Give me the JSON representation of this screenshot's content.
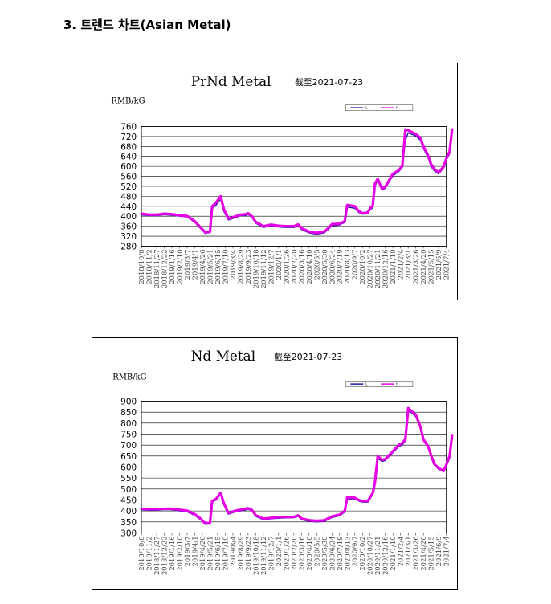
{
  "heading": "3. 트렌드 차트(Asian Metal)",
  "x_dates": [
    "2018/10/8",
    "2018/11/2",
    "2018/11/27",
    "2018/12/22",
    "2019/1/16",
    "2019/2/10",
    "2019/3/7",
    "2019/4/1",
    "2019/4/26",
    "2019/5/21",
    "2019/6/15",
    "2019/7/10",
    "2019/8/4",
    "2019/8/29",
    "2019/9/23",
    "2019/10/18",
    "2019/11/12",
    "2019/12/7",
    "2020/1/1",
    "2020/1/26",
    "2020/2/20",
    "2020/3/16",
    "2020/4/10",
    "2020/5/5",
    "2020/5/30",
    "2020/6/24",
    "2020/7/19",
    "2020/8/13",
    "2020/9/7",
    "2020/10/2",
    "2020/10/27",
    "2020/11/21",
    "2020/12/16",
    "2021/1/10",
    "2021/2/4",
    "2021/3/1",
    "2021/3/26",
    "2021/4/20",
    "2021/5/15",
    "2021/6/9",
    "2021/7/4"
  ],
  "chart_data": [
    {
      "type": "line",
      "title": "PrNd Metal",
      "date_note": "截至2021-07-23",
      "ylabel": "RMB/kG",
      "ylim": [
        280,
        760
      ],
      "yticks": [
        760,
        720,
        680,
        640,
        600,
        560,
        520,
        480,
        440,
        400,
        360,
        320,
        280
      ],
      "legend": [
        "L",
        "H"
      ],
      "colors": {
        "L": "#1a1aa8",
        "H": "#e600e6"
      },
      "series": [
        {
          "name": "L",
          "x": [
            "2018/10/8",
            "2018/11/2",
            "2018/11/27",
            "2018/12/22",
            "2019/1/16",
            "2019/2/10",
            "2019/3/7",
            "2019/4/1",
            "2019/4/20",
            "2019/5/6",
            "2019/5/10",
            "2019/5/21",
            "2019/5/28",
            "2019/6/10",
            "2019/6/25",
            "2019/7/5",
            "2019/7/20",
            "2019/8/10",
            "2019/8/29",
            "2019/9/15",
            "2019/9/23",
            "2019/10/5",
            "2019/10/18",
            "2019/11/12",
            "2019/12/7",
            "2020/1/1",
            "2020/1/26",
            "2020/2/20",
            "2020/3/5",
            "2020/3/16",
            "2020/4/10",
            "2020/5/5",
            "2020/5/30",
            "2020/6/10",
            "2020/6/24",
            "2020/7/19",
            "2020/8/5",
            "2020/8/13",
            "2020/9/7",
            "2020/9/20",
            "2020/10/2",
            "2020/10/20",
            "2020/10/27",
            "2020/11/5",
            "2020/11/12",
            "2020/11/21",
            "2020/12/5",
            "2020/12/16",
            "2021/1/10",
            "2021/1/30",
            "2021/2/10",
            "2021/2/20",
            "2021/3/1",
            "2021/3/26",
            "2021/4/10",
            "2021/4/20",
            "2021/5/5",
            "2021/5/15",
            "2021/5/25",
            "2021/6/9",
            "2021/6/25",
            "2021/7/4",
            "2021/7/15",
            "2021/7/23"
          ],
          "y": [
            405,
            402,
            402,
            406,
            404,
            400,
            397,
            375,
            350,
            330,
            333,
            334,
            430,
            445,
            470,
            420,
            385,
            393,
            402,
            403,
            407,
            395,
            372,
            355,
            362,
            357,
            355,
            355,
            362,
            347,
            333,
            328,
            333,
            345,
            362,
            365,
            375,
            437,
            432,
            415,
            408,
            410,
            425,
            435,
            520,
            545,
            505,
            512,
            562,
            580,
            595,
            705,
            735,
            722,
            705,
            672,
            636,
            600,
            583,
            570,
            592,
            624,
            650,
            740
          ]
        },
        {
          "name": "H",
          "x": [
            "2018/10/8",
            "2018/11/2",
            "2018/11/27",
            "2018/12/22",
            "2019/1/16",
            "2019/2/10",
            "2019/3/7",
            "2019/4/1",
            "2019/4/20",
            "2019/5/6",
            "2019/5/10",
            "2019/5/21",
            "2019/5/28",
            "2019/6/10",
            "2019/6/25",
            "2019/7/5",
            "2019/7/20",
            "2019/8/10",
            "2019/8/29",
            "2019/9/15",
            "2019/9/23",
            "2019/10/5",
            "2019/10/18",
            "2019/11/12",
            "2019/12/7",
            "2020/1/1",
            "2020/1/26",
            "2020/2/20",
            "2020/3/5",
            "2020/3/16",
            "2020/4/10",
            "2020/5/5",
            "2020/5/30",
            "2020/6/10",
            "2020/6/24",
            "2020/7/19",
            "2020/8/5",
            "2020/8/13",
            "2020/9/7",
            "2020/9/20",
            "2020/10/2",
            "2020/10/20",
            "2020/10/27",
            "2020/11/5",
            "2020/11/12",
            "2020/11/21",
            "2020/12/5",
            "2020/12/16",
            "2021/1/10",
            "2021/1/30",
            "2021/2/10",
            "2021/2/20",
            "2021/3/1",
            "2021/3/26",
            "2021/4/10",
            "2021/4/20",
            "2021/5/5",
            "2021/5/15",
            "2021/5/25",
            "2021/6/9",
            "2021/6/25",
            "2021/7/4",
            "2021/7/15",
            "2021/7/23"
          ],
          "y": [
            410,
            406,
            406,
            410,
            408,
            404,
            401,
            380,
            355,
            335,
            338,
            338,
            440,
            455,
            480,
            430,
            390,
            398,
            406,
            408,
            412,
            400,
            377,
            360,
            366,
            362,
            360,
            360,
            367,
            352,
            338,
            333,
            338,
            350,
            368,
            370,
            380,
            445,
            440,
            420,
            412,
            415,
            432,
            442,
            530,
            550,
            510,
            518,
            570,
            585,
            602,
            748,
            745,
            730,
            715,
            680,
            645,
            610,
            590,
            575,
            598,
            630,
            660,
            748
          ]
        }
      ]
    },
    {
      "type": "line",
      "title": "Nd Metal",
      "date_note": "截至2021-07-23",
      "ylabel": "RMB/kG",
      "ylim": [
        300,
        900
      ],
      "yticks": [
        900,
        850,
        800,
        750,
        700,
        650,
        600,
        550,
        500,
        450,
        400,
        350,
        300
      ],
      "legend": [
        "L",
        "H"
      ],
      "colors": {
        "L": "#1a1aa8",
        "H": "#e600e6"
      },
      "series": [
        {
          "name": "L",
          "x": [
            "2018/10/8",
            "2018/11/2",
            "2018/11/27",
            "2018/12/22",
            "2019/1/16",
            "2019/2/10",
            "2019/3/7",
            "2019/4/1",
            "2019/4/20",
            "2019/5/6",
            "2019/5/10",
            "2019/5/21",
            "2019/5/28",
            "2019/6/10",
            "2019/6/25",
            "2019/7/5",
            "2019/7/20",
            "2019/8/10",
            "2019/8/29",
            "2019/9/15",
            "2019/9/23",
            "2019/10/5",
            "2019/10/18",
            "2019/11/12",
            "2019/12/7",
            "2020/1/1",
            "2020/1/26",
            "2020/2/20",
            "2020/3/5",
            "2020/3/16",
            "2020/4/10",
            "2020/5/5",
            "2020/5/30",
            "2020/6/10",
            "2020/6/24",
            "2020/7/19",
            "2020/8/5",
            "2020/8/13",
            "2020/9/7",
            "2020/9/20",
            "2020/10/2",
            "2020/10/20",
            "2020/10/27",
            "2020/11/5",
            "2020/11/12",
            "2020/11/21",
            "2020/12/5",
            "2020/12/16",
            "2021/1/10",
            "2021/1/30",
            "2021/2/10",
            "2021/2/20",
            "2021/3/1",
            "2021/3/26",
            "2021/4/10",
            "2021/4/20",
            "2021/5/5",
            "2021/5/15",
            "2021/5/25",
            "2021/6/9",
            "2021/6/25",
            "2021/7/4",
            "2021/7/15",
            "2021/7/23"
          ],
          "y": [
            405,
            403,
            403,
            406,
            405,
            400,
            396,
            380,
            360,
            338,
            340,
            340,
            440,
            450,
            475,
            430,
            385,
            395,
            400,
            404,
            408,
            400,
            375,
            360,
            364,
            367,
            368,
            369,
            375,
            360,
            353,
            350,
            352,
            360,
            370,
            378,
            395,
            455,
            455,
            445,
            440,
            440,
            455,
            475,
            520,
            640,
            625,
            630,
            665,
            695,
            700,
            720,
            860,
            830,
            780,
            720,
            690,
            650,
            610,
            590,
            578,
            605,
            640,
            735
          ]
        },
        {
          "name": "H",
          "x": [
            "2018/10/8",
            "2018/11/2",
            "2018/11/27",
            "2018/12/22",
            "2019/1/16",
            "2019/2/10",
            "2019/3/7",
            "2019/4/1",
            "2019/4/20",
            "2019/5/6",
            "2019/5/10",
            "2019/5/21",
            "2019/5/28",
            "2019/6/10",
            "2019/6/25",
            "2019/7/5",
            "2019/7/20",
            "2019/8/10",
            "2019/8/29",
            "2019/9/15",
            "2019/9/23",
            "2019/10/5",
            "2019/10/18",
            "2019/11/12",
            "2019/12/7",
            "2020/1/1",
            "2020/1/26",
            "2020/2/20",
            "2020/3/5",
            "2020/3/16",
            "2020/4/10",
            "2020/5/5",
            "2020/5/30",
            "2020/6/10",
            "2020/6/24",
            "2020/7/19",
            "2020/8/5",
            "2020/8/13",
            "2020/9/7",
            "2020/9/20",
            "2020/10/2",
            "2020/10/20",
            "2020/10/27",
            "2020/11/5",
            "2020/11/12",
            "2020/11/21",
            "2020/12/5",
            "2020/12/16",
            "2021/1/10",
            "2021/1/30",
            "2021/2/10",
            "2021/2/20",
            "2021/3/1",
            "2021/3/26",
            "2021/4/10",
            "2021/4/20",
            "2021/5/5",
            "2021/5/15",
            "2021/5/25",
            "2021/6/9",
            "2021/6/25",
            "2021/7/4",
            "2021/7/15",
            "2021/7/23"
          ],
          "y": [
            410,
            408,
            408,
            410,
            410,
            405,
            401,
            385,
            365,
            342,
            345,
            345,
            445,
            455,
            482,
            437,
            390,
            400,
            405,
            410,
            412,
            405,
            380,
            365,
            368,
            372,
            372,
            373,
            380,
            365,
            358,
            355,
            357,
            365,
            375,
            383,
            400,
            462,
            460,
            450,
            445,
            445,
            462,
            482,
            530,
            650,
            632,
            636,
            672,
            702,
            708,
            728,
            868,
            838,
            785,
            725,
            695,
            655,
            615,
            595,
            582,
            610,
            650,
            745
          ]
        }
      ]
    }
  ]
}
